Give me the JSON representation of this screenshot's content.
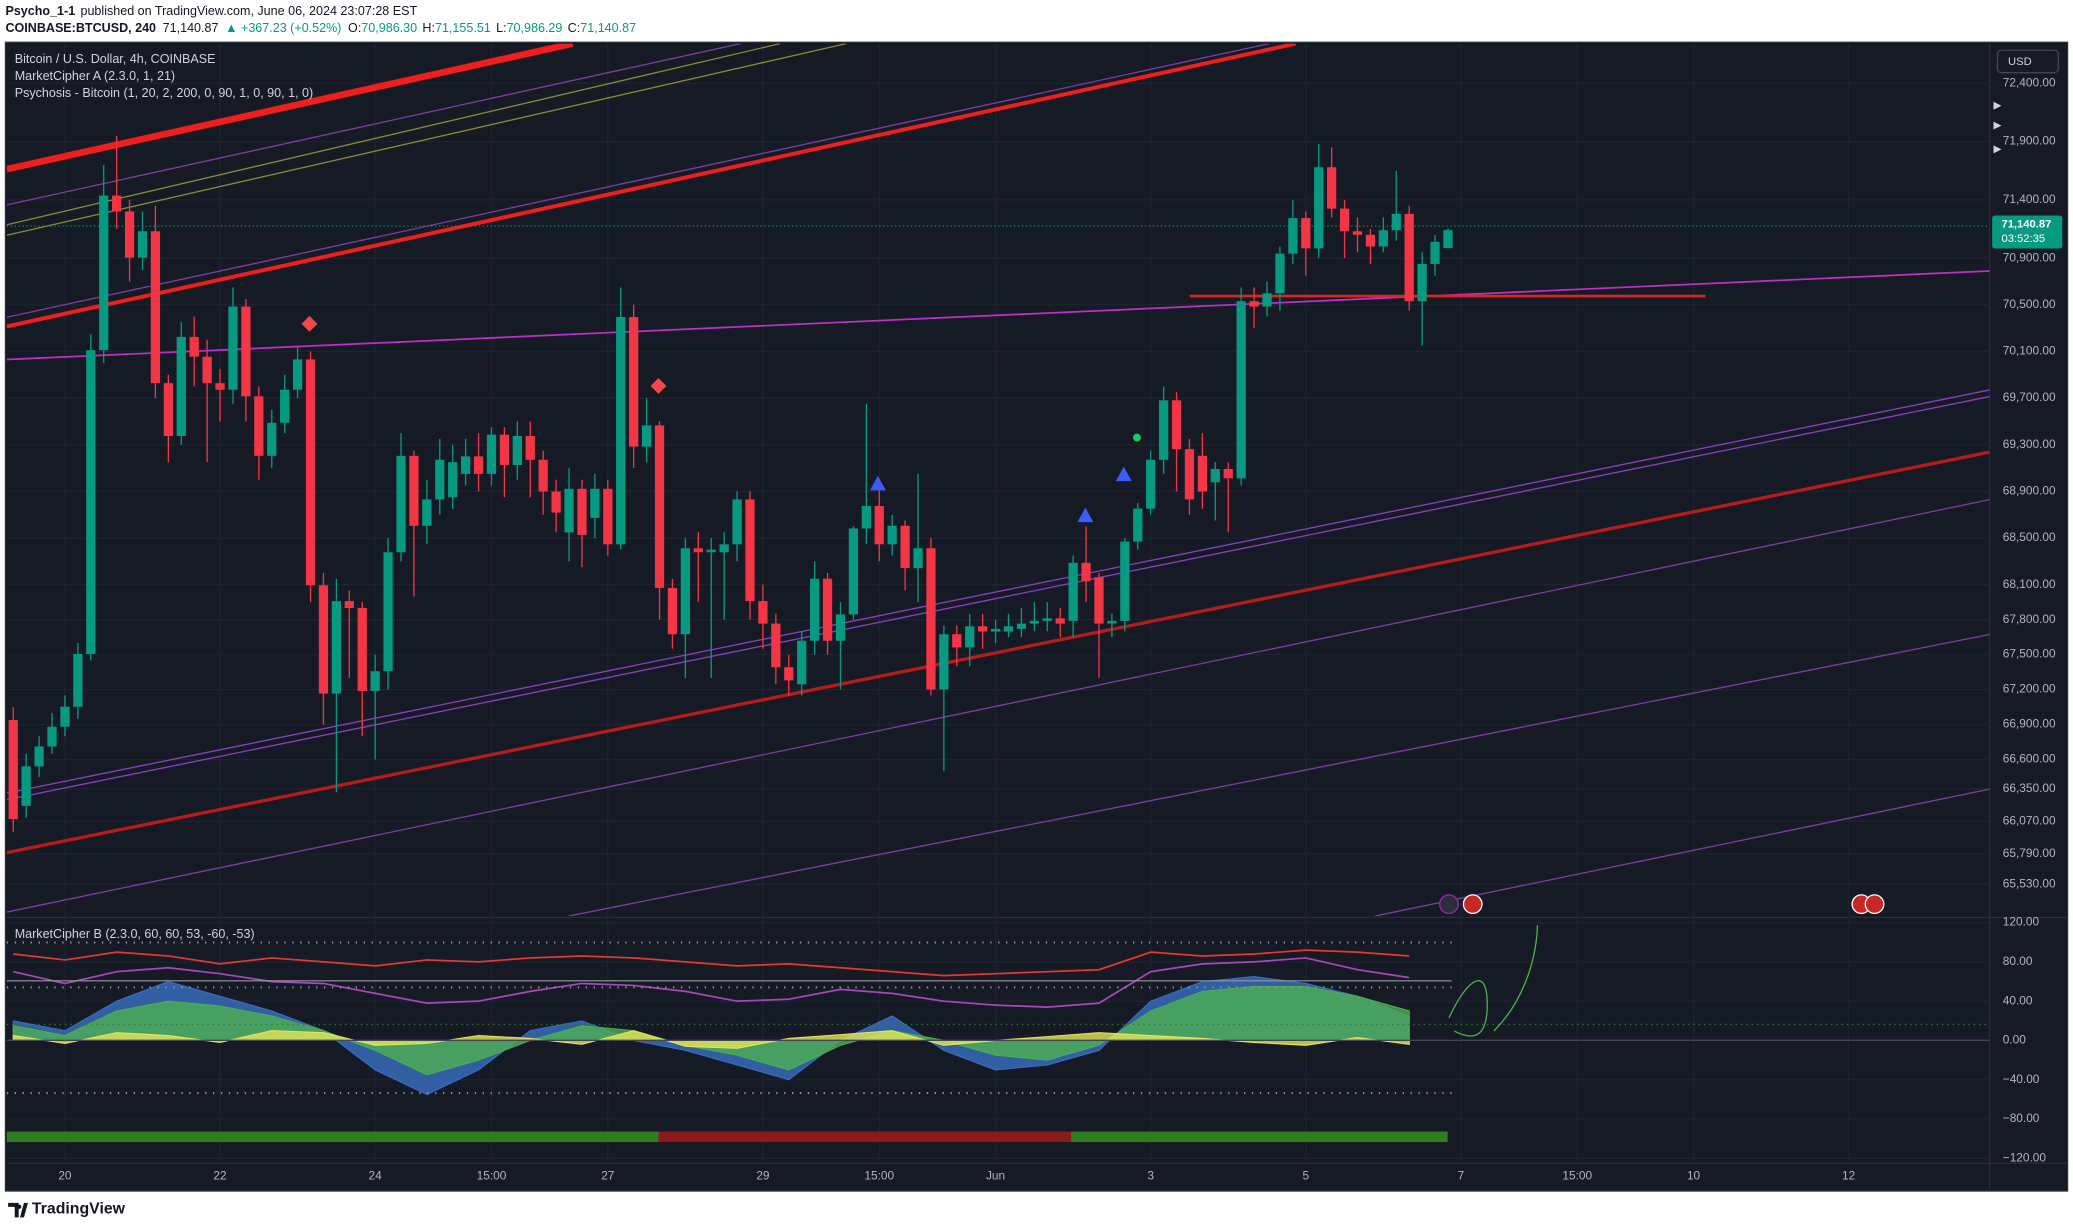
{
  "header": {
    "author": "Psycho_1-1",
    "published": "published on TradingView.com, June 06, 2024 23:07:28 EST",
    "symbol": "COINBASE:BTCUSD, 240",
    "last": "71,140.87",
    "change": "▲ +367.23 (+0.52%)",
    "o_label": "O:",
    "o": "70,986.30",
    "h_label": "H:",
    "h": "71,155.51",
    "l_label": "L:",
    "l": "70,986.29",
    "c_label": "C:",
    "c": "71,140.87"
  },
  "currency": "USD",
  "price_tag": {
    "price": "71,140.87",
    "countdown": "03:52:35"
  },
  "footer": {
    "logo": "TradingView"
  },
  "chart_data": [
    {
      "type": "candlestick",
      "title": "Bitcoin / U.S. Dollar, 4h, COINBASE",
      "indicators": [
        "MarketCipher A (2.3.0, 1, 21)",
        "Psychosis - Bitcoin (1, 20, 2, 200, 0, 90, 1, 0, 90, 1, 0)"
      ],
      "up_color": "#089981",
      "down_color": "#f23645",
      "open": [
        66939,
        66203,
        66542,
        66712,
        66882,
        67053,
        67506,
        70111,
        71437,
        71301,
        70905,
        71131,
        69828,
        69375,
        70225,
        70055,
        69828,
        69772,
        70485,
        69715,
        69205,
        69488,
        69772,
        70032,
        68095,
        67166,
        67959,
        67900,
        67188,
        67358,
        68378,
        69205,
        68605,
        68831,
        68850,
        69050,
        69200,
        69050,
        69386,
        69126,
        69375,
        69171,
        68899,
        68548,
        68922,
        68673,
        68922,
        68446,
        70395,
        69284,
        69466,
        68072,
        67675,
        68412,
        68378,
        68378,
        68446,
        68831,
        67959,
        67766,
        67392,
        67245,
        67619,
        68151,
        67619,
        67845,
        68582,
        68775,
        68446,
        68605,
        68242,
        68412,
        67200,
        67675,
        67562,
        67743,
        67698,
        67698,
        67721,
        67766,
        67789,
        67811,
        67789,
        68287,
        68163,
        67766,
        67789,
        68469,
        68752,
        69171,
        69681,
        69262,
        69205,
        68978,
        69092,
        69012,
        70531,
        70485,
        70599,
        70939,
        71244,
        70984,
        71680,
        71325,
        71131,
        71100,
        71000,
        71140,
        71280,
        70531,
        70850,
        70986.3
      ],
      "high": [
        67050,
        66650,
        66800,
        67000,
        67150,
        67600,
        70250,
        71700,
        71950,
        71400,
        71300,
        71350,
        69900,
        70350,
        70400,
        70200,
        69950,
        70650,
        70550,
        69800,
        69600,
        69900,
        70150,
        70100,
        68200,
        68150,
        68050,
        67950,
        67500,
        68500,
        69400,
        69250,
        69000,
        69350,
        69300,
        69350,
        69400,
        69450,
        69450,
        69500,
        69500,
        69250,
        69000,
        69100,
        69000,
        69050,
        69000,
        70650,
        70500,
        69700,
        69500,
        68150,
        68500,
        68550,
        68500,
        68550,
        68900,
        68900,
        68100,
        67850,
        67500,
        67700,
        68300,
        68200,
        67950,
        68600,
        69650,
        68950,
        68700,
        68650,
        69050,
        68500,
        67750,
        67750,
        67850,
        67850,
        67800,
        67850,
        67900,
        67950,
        67950,
        67900,
        68350,
        68600,
        68200,
        67850,
        68500,
        68800,
        69250,
        69800,
        69750,
        69350,
        69400,
        69150,
        69150,
        70650,
        70650,
        70700,
        71000,
        71400,
        71300,
        71880,
        71850,
        71400,
        71250,
        71150,
        71250,
        71650,
        71350,
        70950,
        71100,
        71155.51
      ],
      "low": [
        65980,
        66100,
        66450,
        66650,
        66800,
        66950,
        67450,
        70000,
        71150,
        70700,
        70800,
        69700,
        69150,
        69300,
        69800,
        69150,
        69500,
        69650,
        69500,
        69000,
        69100,
        69400,
        69700,
        67950,
        66900,
        66320,
        67300,
        66800,
        66600,
        67200,
        68300,
        68000,
        68450,
        68700,
        68750,
        68950,
        68900,
        68950,
        68850,
        69000,
        68850,
        68700,
        68550,
        68300,
        68250,
        68500,
        68350,
        68400,
        69100,
        69150,
        67800,
        67550,
        67300,
        67950,
        67300,
        67800,
        68300,
        67800,
        67550,
        67250,
        67150,
        67150,
        67500,
        67500,
        67200,
        67800,
        68450,
        68300,
        68350,
        68050,
        67950,
        67150,
        66500,
        67400,
        67400,
        67550,
        67600,
        67650,
        67650,
        67700,
        67700,
        67650,
        67650,
        67950,
        67300,
        67650,
        67700,
        68400,
        68700,
        69050,
        68900,
        68700,
        68750,
        68650,
        68550,
        68950,
        70300,
        70400,
        70450,
        70850,
        70750,
        70900,
        71250,
        70900,
        70950,
        70850,
        70950,
        71050,
        70450,
        70150,
        70750,
        70986.29
      ],
      "close": [
        66089,
        66542,
        66712,
        66882,
        67053,
        67506,
        70111,
        71437,
        71301,
        70905,
        71131,
        69828,
        69375,
        70225,
        70055,
        69828,
        69772,
        70485,
        69715,
        69205,
        69488,
        69772,
        70032,
        68095,
        67166,
        67959,
        67900,
        67188,
        67358,
        68378,
        69205,
        68605,
        68831,
        69171,
        69150,
        69200,
        69050,
        69386,
        69126,
        69375,
        69171,
        68899,
        68718,
        68922,
        68525,
        68922,
        68446,
        70395,
        69284,
        69466,
        68072,
        67675,
        68412,
        68378,
        68400,
        68446,
        68831,
        67959,
        67766,
        67392,
        67279,
        67619,
        68151,
        67619,
        67845,
        68582,
        68775,
        68446,
        68605,
        68242,
        68412,
        67200,
        67675,
        67562,
        67743,
        67698,
        67721,
        67743,
        67766,
        67789,
        67811,
        67766,
        68287,
        68129,
        67766,
        67789,
        68469,
        68752,
        69171,
        69681,
        69262,
        68831,
        68899,
        69092,
        69012,
        70531,
        70485,
        70599,
        70939,
        71244,
        70984,
        71680,
        71325,
        71131,
        71100,
        71000,
        71140,
        71280,
        70531,
        70850,
        71040,
        71140.87
      ],
      "xlim": [
        -0.5,
        152.9
      ],
      "ylim": [
        65258,
        72740
      ],
      "yticks": [
        {
          "value": 72400,
          "label": "72,400.00"
        },
        {
          "value": 71900,
          "label": "71,900.00"
        },
        {
          "value": 71400,
          "label": "71,400.00"
        },
        {
          "value": 70900,
          "label": "70,900.00"
        },
        {
          "value": 70500,
          "label": "70,500.00"
        },
        {
          "value": 70100,
          "label": "70,100.00"
        },
        {
          "value": 69700,
          "label": "69,700.00"
        },
        {
          "value": 69300,
          "label": "69,300.00"
        },
        {
          "value": 68900,
          "label": "68,900.00"
        },
        {
          "value": 68500,
          "label": "68,500.00"
        },
        {
          "value": 68100,
          "label": "68,100.00"
        },
        {
          "value": 67800,
          "label": "67,800.00"
        },
        {
          "value": 67500,
          "label": "67,500.00"
        },
        {
          "value": 67200,
          "label": "67,200.00"
        },
        {
          "value": 66900,
          "label": "66,900.00"
        },
        {
          "value": 66600,
          "label": "66,600.00"
        },
        {
          "value": 66350,
          "label": "66,350.00"
        },
        {
          "value": 66070,
          "label": "66,070.00"
        },
        {
          "value": 65790,
          "label": "65,790.00"
        },
        {
          "value": 65530,
          "label": "65,530.00"
        }
      ],
      "grid": true
    },
    {
      "type": "area",
      "title": "MarketCipher B (2.3.0, 60, 60, 53, -60, -53)",
      "x": [
        0,
        4,
        8,
        12,
        16,
        20,
        24,
        28,
        32,
        36,
        40,
        44,
        48,
        52,
        56,
        60,
        64,
        68,
        72,
        76,
        80,
        84,
        88,
        92,
        96,
        100,
        104,
        108
      ],
      "series": [
        {
          "color": "#3a6fc4",
          "style": "area",
          "values": [
            20,
            10,
            40,
            60,
            45,
            30,
            10,
            -30,
            -55,
            -30,
            10,
            20,
            0,
            -10,
            -25,
            -40,
            0,
            25,
            -10,
            -30,
            -25,
            -10,
            40,
            60,
            65,
            58,
            45,
            25
          ]
        },
        {
          "color": "#4caf50",
          "style": "area",
          "values": [
            15,
            5,
            30,
            40,
            35,
            25,
            10,
            -10,
            -35,
            -20,
            0,
            15,
            10,
            -5,
            -15,
            -30,
            -5,
            10,
            0,
            -15,
            -20,
            -5,
            30,
            50,
            55,
            55,
            45,
            30
          ]
        },
        {
          "color": "#e6e65a",
          "style": "area",
          "values": [
            5,
            -3,
            8,
            5,
            -2,
            10,
            8,
            -5,
            -3,
            5,
            2,
            -4,
            10,
            -6,
            -8,
            2,
            6,
            10,
            -5,
            0,
            4,
            8,
            5,
            2,
            -2,
            -5,
            3,
            -4
          ]
        },
        {
          "color": "#ab47bc",
          "style": "line",
          "values": [
            70,
            58,
            70,
            74,
            68,
            60,
            58,
            48,
            38,
            40,
            50,
            58,
            56,
            50,
            40,
            42,
            52,
            48,
            40,
            36,
            34,
            38,
            70,
            78,
            80,
            84,
            72,
            64
          ]
        },
        {
          "color": "#e53935",
          "style": "line",
          "values": [
            88,
            82,
            90,
            86,
            78,
            84,
            80,
            76,
            82,
            80,
            84,
            86,
            84,
            80,
            76,
            78,
            74,
            70,
            66,
            68,
            70,
            72,
            90,
            86,
            88,
            92,
            90,
            86
          ]
        }
      ],
      "xlim": [
        -0.5,
        152.9
      ],
      "xticks": [
        {
          "value": 4,
          "label": "20"
        },
        {
          "value": 16,
          "label": "22"
        },
        {
          "value": 28,
          "label": "24"
        },
        {
          "value": 37,
          "label": "15:00"
        },
        {
          "value": 46,
          "label": "27"
        },
        {
          "value": 58,
          "label": "29"
        },
        {
          "value": 67,
          "label": "15:00"
        },
        {
          "value": 76,
          "label": "Jun"
        },
        {
          "value": 88,
          "label": "3"
        },
        {
          "value": 100,
          "label": "5"
        },
        {
          "value": 112,
          "label": "7"
        },
        {
          "value": 121,
          "label": "15:00"
        },
        {
          "value": 130,
          "label": "10"
        },
        {
          "value": 142,
          "label": "12"
        }
      ],
      "ylim": [
        -125,
        124
      ],
      "yticks": [
        {
          "value": 120,
          "label": "120.00"
        },
        {
          "value": 80,
          "label": "80.00"
        },
        {
          "value": 40,
          "label": "40.00"
        },
        {
          "value": 0,
          "label": "0.00"
        },
        {
          "value": -40,
          "label": "−40.00"
        },
        {
          "value": -80,
          "label": "−80.00"
        },
        {
          "value": -120,
          "label": "−120.00"
        }
      ],
      "grid": true
    }
  ]
}
